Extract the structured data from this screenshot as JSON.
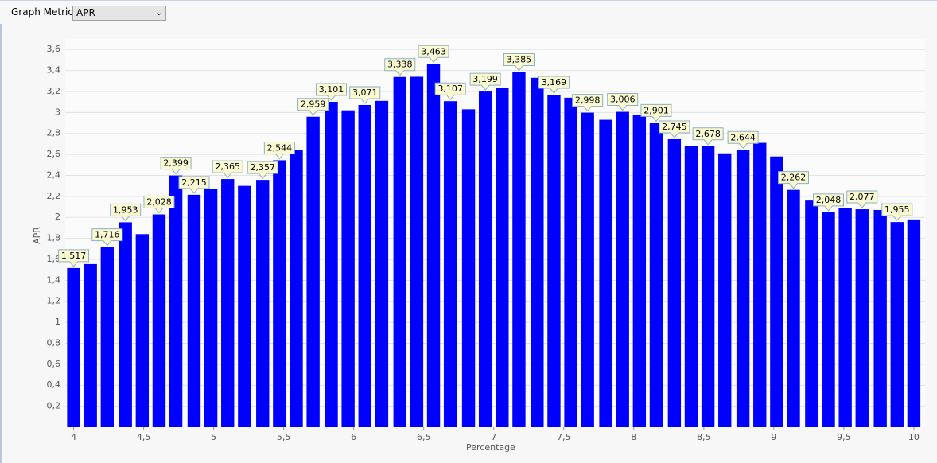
{
  "controls": {
    "label": "Graph Metric",
    "value": "APR"
  },
  "chart_data": {
    "type": "bar",
    "xlabel": "Percentage",
    "ylabel": "APR",
    "color": "#0000ff",
    "grid": true,
    "x": [
      4,
      4.12,
      4.24,
      4.37,
      4.49,
      4.61,
      4.73,
      4.86,
      4.98,
      5.1,
      5.22,
      5.35,
      5.47,
      5.59,
      5.71,
      5.84,
      5.96,
      6.08,
      6.2,
      6.33,
      6.45,
      6.57,
      6.69,
      6.82,
      6.94,
      7.06,
      7.18,
      7.31,
      7.43,
      7.55,
      7.67,
      7.8,
      7.92,
      8.04,
      8.16,
      8.29,
      8.41,
      8.53,
      8.65,
      8.78,
      8.9,
      9.02,
      9.14,
      9.27,
      9.39,
      9.51,
      9.63,
      9.76,
      9.88,
      10
    ],
    "values": [
      1.517,
      1.555,
      1.716,
      1.953,
      1.84,
      2.028,
      2.399,
      2.215,
      2.27,
      2.365,
      2.3,
      2.357,
      2.544,
      2.64,
      2.959,
      3.101,
      3.02,
      3.071,
      3.11,
      3.338,
      3.34,
      3.463,
      3.107,
      3.03,
      3.199,
      3.23,
      3.385,
      3.33,
      3.169,
      3.14,
      2.998,
      2.93,
      3.006,
      2.98,
      2.901,
      2.745,
      2.68,
      2.678,
      2.61,
      2.644,
      2.71,
      2.58,
      2.262,
      2.16,
      2.048,
      2.09,
      2.077,
      2.07,
      1.955,
      1.98
    ],
    "value_labels": [
      "1,517",
      null,
      "1,716",
      "1,953",
      null,
      "2,028",
      "2,399",
      "2,215",
      null,
      "2,365",
      null,
      "2,357",
      "2,544",
      null,
      "2,959",
      "3,101",
      null,
      "3,071",
      null,
      "3,338",
      null,
      "3,463",
      "3,107",
      null,
      "3,199",
      null,
      "3,385",
      null,
      "3,169",
      null,
      "2,998",
      null,
      "3,006",
      null,
      "2,901",
      "2,745",
      null,
      "2,678",
      null,
      "2,644",
      null,
      null,
      "2,262",
      null,
      "2,048",
      null,
      "2,077",
      null,
      "1,955",
      null
    ],
    "xlim": [
      3.94,
      10.08
    ],
    "xticks": [
      4,
      {
        "value": 4.5,
        "label": "4,5"
      },
      5,
      {
        "value": 5.5,
        "label": "5,5"
      },
      6,
      {
        "value": 6.5,
        "label": "6,5"
      },
      7,
      {
        "value": 7.5,
        "label": "7,5"
      },
      8,
      {
        "value": 8.5,
        "label": "8,5"
      },
      9,
      {
        "value": 9.5,
        "label": "9,5"
      },
      10
    ],
    "ylim": [
      0,
      3.7
    ],
    "yticks": [
      {
        "value": 0.2,
        "label": "0,2"
      },
      {
        "value": 0.4,
        "label": "0,4"
      },
      {
        "value": 0.6,
        "label": "0,6"
      },
      {
        "value": 0.8,
        "label": "0,8"
      },
      1,
      {
        "value": 1.2,
        "label": "1,2"
      },
      {
        "value": 1.4,
        "label": "1,4"
      },
      {
        "value": 1.6,
        "label": "1,6"
      },
      {
        "value": 1.8,
        "label": "1,8"
      },
      2,
      {
        "value": 2.2,
        "label": "2,2"
      },
      {
        "value": 2.4,
        "label": "2,4"
      },
      {
        "value": 2.6,
        "label": "2,6"
      },
      {
        "value": 2.8,
        "label": "2,8"
      },
      3,
      {
        "value": 3.2,
        "label": "3,2"
      },
      {
        "value": 3.4,
        "label": "3,4"
      },
      {
        "value": 3.6,
        "label": "3,6"
      }
    ]
  }
}
